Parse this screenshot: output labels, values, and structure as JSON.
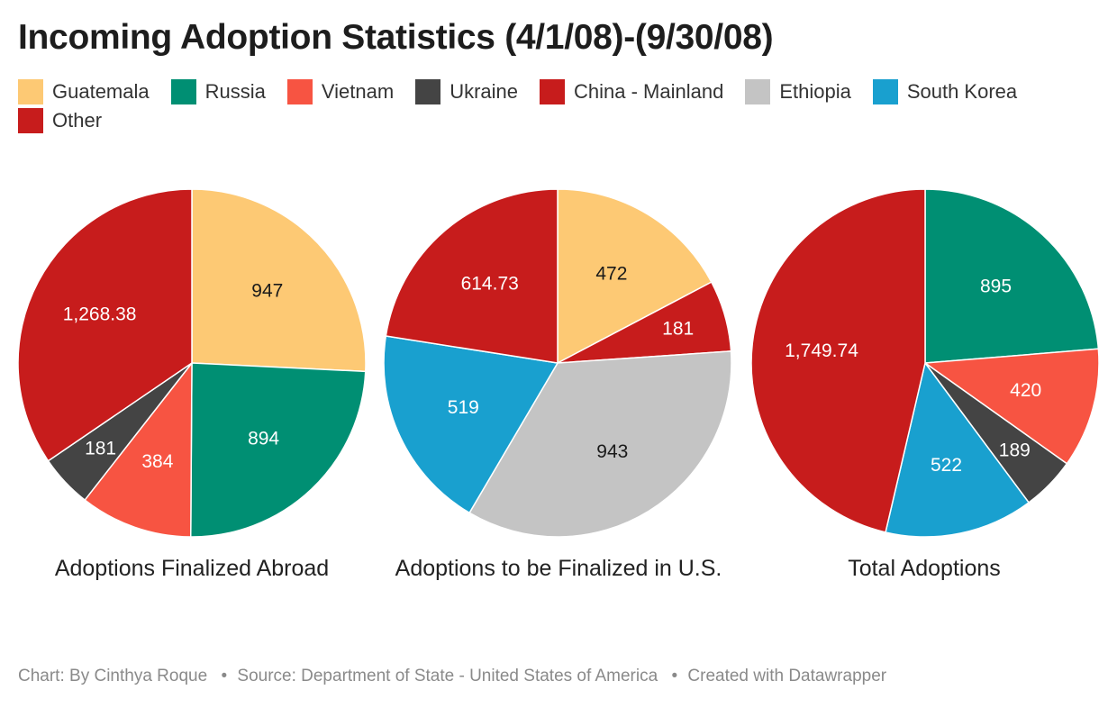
{
  "header": {
    "title": "Incoming Adoption Statistics (4/1/08)-(9/30/08)"
  },
  "legend": [
    {
      "label": "Guatemala",
      "color": "#fdc974"
    },
    {
      "label": "Russia",
      "color": "#008f73"
    },
    {
      "label": "Vietnam",
      "color": "#f75442"
    },
    {
      "label": "Ukraine",
      "color": "#444444"
    },
    {
      "label": "China - Mainland",
      "color": "#c71c1c"
    },
    {
      "label": "Ethiopia",
      "color": "#c4c4c4"
    },
    {
      "label": "South Korea",
      "color": "#19a0cf"
    },
    {
      "label": "Other",
      "color": "#c71c1c"
    }
  ],
  "chart_data": [
    {
      "type": "pie",
      "title": "Adoptions Finalized Abroad",
      "slices": [
        {
          "category": "Guatemala",
          "value": 947,
          "label": "947",
          "color": "#fdc974",
          "label_color": "#1a1a1a"
        },
        {
          "category": "Russia",
          "value": 894,
          "label": "894",
          "color": "#008f73",
          "label_color": "#ffffff"
        },
        {
          "category": "Vietnam",
          "value": 384,
          "label": "384",
          "color": "#f75442",
          "label_color": "#ffffff"
        },
        {
          "category": "Ukraine",
          "value": 181,
          "label": "181",
          "color": "#444444",
          "label_color": "#ffffff"
        },
        {
          "category": "Other",
          "value": 1268.38,
          "label": "1,268.38",
          "color": "#c71c1c",
          "label_color": "#ffffff"
        }
      ]
    },
    {
      "type": "pie",
      "title": "Adoptions to be Finalized in U.S.",
      "slices": [
        {
          "category": "Guatemala",
          "value": 472,
          "label": "472",
          "color": "#fdc974",
          "label_color": "#1a1a1a"
        },
        {
          "category": "China - Mainland",
          "value": 181,
          "label": "181",
          "color": "#c71c1c",
          "label_color": "#ffffff"
        },
        {
          "category": "Ethiopia",
          "value": 943,
          "label": "943",
          "color": "#c4c4c4",
          "label_color": "#1a1a1a"
        },
        {
          "category": "South Korea",
          "value": 519,
          "label": "519",
          "color": "#19a0cf",
          "label_color": "#ffffff"
        },
        {
          "category": "Other",
          "value": 614.73,
          "label": "614.73",
          "color": "#c71c1c",
          "label_color": "#ffffff"
        }
      ]
    },
    {
      "type": "pie",
      "title": "Total Adoptions",
      "slices": [
        {
          "category": "Russia",
          "value": 895,
          "label": "895",
          "color": "#008f73",
          "label_color": "#ffffff"
        },
        {
          "category": "Vietnam",
          "value": 420,
          "label": "420",
          "color": "#f75442",
          "label_color": "#ffffff"
        },
        {
          "category": "Ukraine",
          "value": 189,
          "label": "189",
          "color": "#444444",
          "label_color": "#ffffff"
        },
        {
          "category": "South Korea",
          "value": 522,
          "label": "522",
          "color": "#19a0cf",
          "label_color": "#ffffff"
        },
        {
          "category": "Other",
          "value": 1749.74,
          "label": "1,749.74",
          "color": "#c71c1c",
          "label_color": "#ffffff"
        }
      ]
    }
  ],
  "footer": {
    "chart_credit": "Chart: By Cinthya Roque",
    "source": "Source: Department of State - United States of America",
    "created_with": "Created with Datawrapper",
    "separator": "•"
  }
}
